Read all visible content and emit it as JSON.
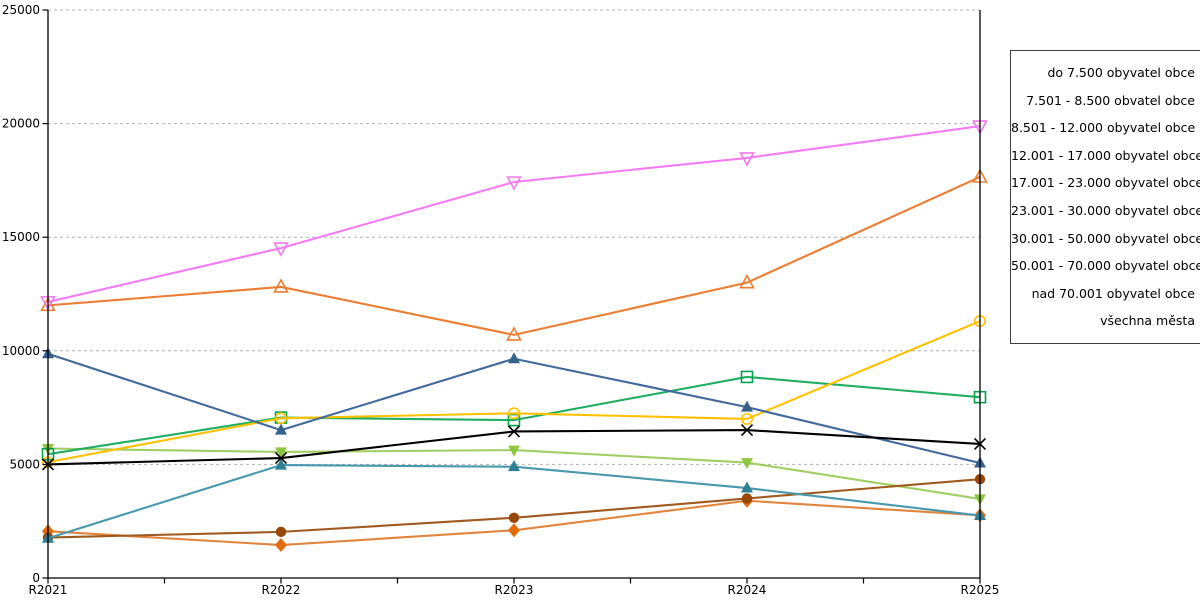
{
  "chart_data": {
    "type": "line",
    "title": "",
    "xlabel": "",
    "ylabel": "",
    "categories": [
      "R2021",
      "R2022",
      "R2023",
      "R2024",
      "R2025"
    ],
    "ylim": [
      0,
      25000
    ],
    "yticks": [
      0,
      5000,
      10000,
      15000,
      20000,
      25000
    ],
    "ytick_labels": [
      "0",
      "5000",
      "10000",
      "15000",
      "20000",
      "25000"
    ],
    "grid": "horizontal dashed gray, including top 25000 line",
    "legend_position": "right, outside plot, text-only box clipped at image edge",
    "series": [
      {
        "name": "do 7.500 obyvatel obce",
        "marker": "diamond-filled",
        "color": "#E36C0A",
        "line_color": "#E2853C",
        "values": [
          2060,
          1450,
          2100,
          3400,
          2760
        ]
      },
      {
        "name": "7.501 - 8.500 obvatel obce",
        "marker": "circle-filled",
        "color": "#974706",
        "line_color": "#A05A20",
        "values": [
          1780,
          2030,
          2650,
          3500,
          4350
        ]
      },
      {
        "name": "8.501 - 12.000 obyvatel obce",
        "marker": "triangle-up-filled",
        "color": "#2E7F93",
        "line_color": "#4899AE",
        "values": [
          1750,
          4970,
          4900,
          3960,
          2750
        ]
      },
      {
        "name": "12.001 - 17.000 obyvatel obce",
        "marker": "triangle-down-filled",
        "color": "#8DC63F",
        "line_color": "#9FCE63",
        "values": [
          5700,
          5550,
          5630,
          5080,
          3480
        ]
      },
      {
        "name": "17.001 - 23.000 obyvatel obce",
        "marker": "triangle-up-filled",
        "color": "#36608E",
        "line_color": "#41699B",
        "values": [
          9870,
          6510,
          9650,
          7520,
          5060
        ]
      },
      {
        "name": "23.001 - 30.000 obyvatel obce",
        "marker": "square-open",
        "color": "#00A24F",
        "line_color": "#21AE60",
        "values": [
          5450,
          7060,
          6950,
          8850,
          7960
        ]
      },
      {
        "name": "30.001 - 50.000 obyvatel obce",
        "marker": "circle-open",
        "color": "#FFC000",
        "line_color": "#FFC000",
        "values": [
          5100,
          7030,
          7250,
          7000,
          11310
        ]
      },
      {
        "name": "50.001 - 70.000 obyvatel obce",
        "marker": "triangle-up-open",
        "color": "#ED7D31",
        "line_color": "#ED7D31",
        "values": [
          12000,
          12810,
          10700,
          13000,
          17650
        ]
      },
      {
        "name": "nad 70.001 obyvatel obce",
        "marker": "triangle-down-open",
        "color": "#EE7AEB",
        "line_color": "#F57BF5",
        "values": [
          12150,
          14520,
          17430,
          18490,
          19890
        ]
      },
      {
        "name": "všechna města",
        "marker": "x-mark",
        "color": "#000000",
        "line_color": "#000000",
        "values": [
          5000,
          5280,
          6450,
          6510,
          5900
        ]
      }
    ]
  },
  "legend": {
    "items": [
      "do 7.500 obyvatel obce",
      "7.501 - 8.500 obvatel obce",
      "8.501 - 12.000 obyvatel obce",
      "12.001 - 17.000 obyvatel obce",
      "17.001 - 23.000 obyvatel obce",
      "23.001 - 30.000 obyvatel obce",
      "30.001 - 50.000 obyvatel obce",
      "50.001 - 70.000 obyvatel obce",
      "nad 70.001 obyvatel obce",
      "všechna města"
    ]
  },
  "colors": {
    "gridline": "#B0B0B0",
    "axis": "#000000",
    "legend_border": "#3F3F3F",
    "background": "#FFFFFF"
  }
}
